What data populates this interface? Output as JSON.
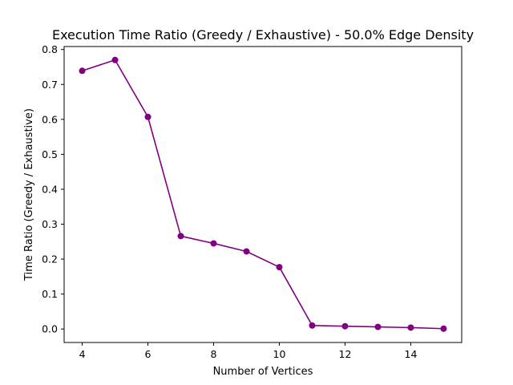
{
  "chart_data": {
    "type": "line",
    "title": "Execution Time Ratio (Greedy / Exhaustive) - 50.0% Edge Density",
    "xlabel": "Number of Vertices",
    "ylabel": "Time Ratio (Greedy / Exhaustive)",
    "xlim": [
      3.45,
      15.55
    ],
    "ylim": [
      -0.0386,
      0.8085
    ],
    "xticks": [
      4,
      6,
      8,
      10,
      12,
      14
    ],
    "yticks": [
      0.0,
      0.1,
      0.2,
      0.3,
      0.4,
      0.5,
      0.6,
      0.7,
      0.8
    ],
    "ytick_labels": [
      "0.0",
      "0.1",
      "0.2",
      "0.3",
      "0.4",
      "0.5",
      "0.6",
      "0.7",
      "0.8"
    ],
    "grid": false,
    "series": [
      {
        "color": "#800080",
        "marker": "circle",
        "x": [
          4,
          5,
          6,
          7,
          8,
          9,
          10,
          11,
          12,
          13,
          14,
          15
        ],
        "y": [
          0.739,
          0.77,
          0.607,
          0.266,
          0.245,
          0.222,
          0.177,
          0.01,
          0.008,
          0.006,
          0.004,
          0.001
        ]
      }
    ]
  }
}
